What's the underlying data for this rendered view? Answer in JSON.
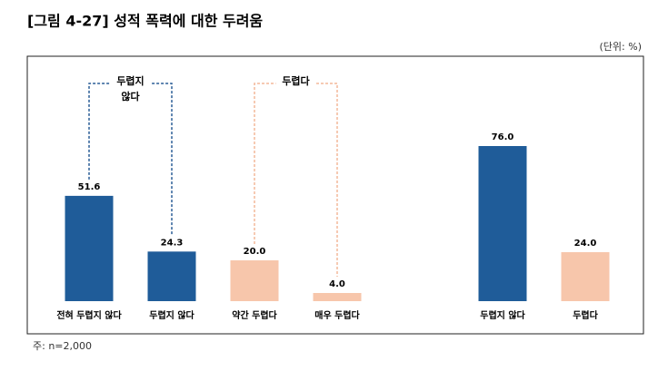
{
  "chart_data": {
    "type": "bar",
    "title": "[그림 4-27] 성적 폭력에 대한 두려움",
    "unit_note": "(단위: %)",
    "footnote": "주: n=2,000",
    "categories": [
      "전혀 두렵지 않다",
      "두렵지 않다",
      "약간 두렵다",
      "매우 두렵다",
      null,
      "두렵지 않다",
      "두렵다"
    ],
    "values": [
      51.6,
      24.3,
      20.0,
      4.0,
      null,
      76.0,
      24.0
    ],
    "value_labels": [
      "51.6",
      "24.3",
      "20.0",
      "4.0",
      null,
      "76.0",
      "24.0"
    ],
    "colors": [
      "#1f5c99",
      "#1f5c99",
      "#f7c6ab",
      "#f7c6ab",
      null,
      "#1f5c99",
      "#f7c6ab"
    ],
    "brackets": [
      {
        "lines": [
          "두렵지",
          "않다"
        ],
        "from": 0,
        "to": 1,
        "color": "#2a5d96"
      },
      {
        "lines": [
          "두렵다"
        ],
        "from": 2,
        "to": 3,
        "color": "#f4b89a"
      }
    ]
  }
}
